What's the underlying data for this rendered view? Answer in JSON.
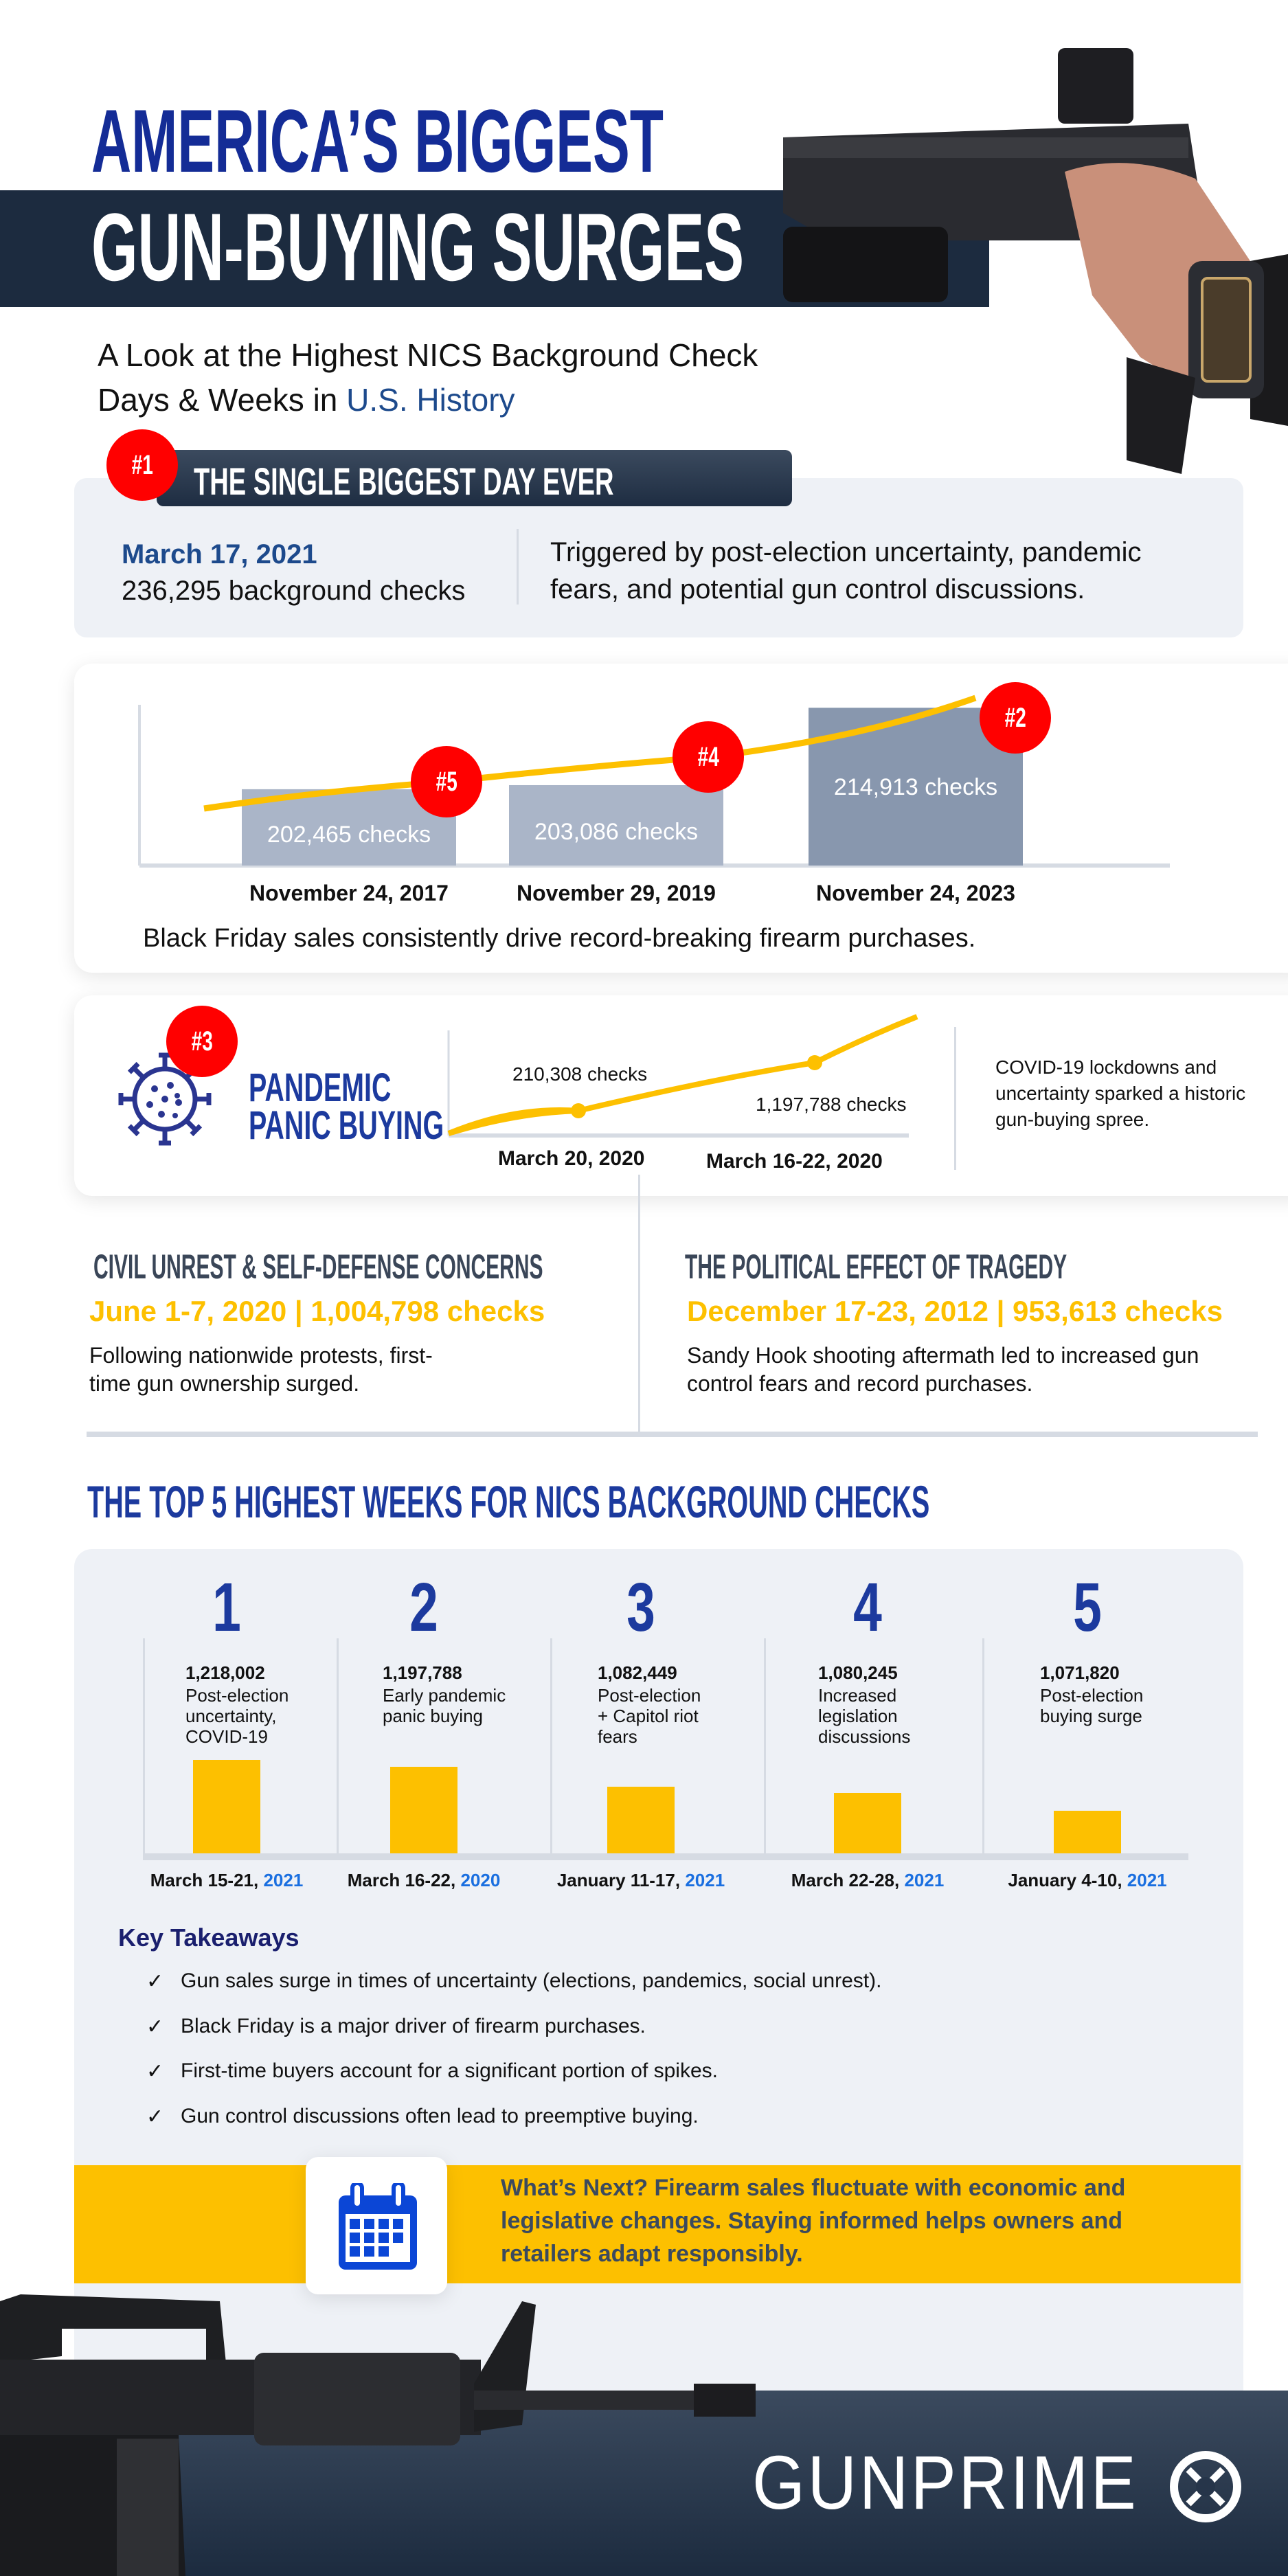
{
  "header": {
    "title_line1": "AMERICA’S BIGGEST",
    "title_line2": "GUN-BUYING SURGES",
    "subtitle_line1": "A Look at the Highest NICS Background Check",
    "subtitle_line2_prefix": "Days & Weeks in ",
    "subtitle_line2_highlight": "U.S. History"
  },
  "biggest_day": {
    "badge": "#1",
    "heading": "THE SINGLE BIGGEST DAY EVER",
    "date": "March 17, 2021",
    "checks": "236,295 background checks",
    "description_line1": "Triggered by post-election uncertainty, pandemic",
    "description_line2": "fears, and potential gun control discussions."
  },
  "black_friday": {
    "chart_data": {
      "type": "bar",
      "categories": [
        "November 24, 2017",
        "November 29, 2019",
        "November 24, 2023"
      ],
      "values": [
        202465,
        203086,
        214913
      ],
      "value_labels": [
        "202,465  checks",
        "203,086 checks",
        "214,913 checks"
      ],
      "ranks": [
        "#5",
        "#4",
        "#2"
      ],
      "title": "",
      "xlabel": "",
      "ylabel": ""
    },
    "caption": "Black Friday sales consistently drive record-breaking firearm purchases."
  },
  "pandemic": {
    "badge": "#3",
    "icon": "virus-icon",
    "title_line1": "PANDEMIC",
    "title_line2": "PANIC BUYING",
    "chart_data": {
      "type": "line",
      "points": [
        {
          "x": "March 20, 2020",
          "label": "210,308 checks",
          "value": 210308
        },
        {
          "x": "March 16-22, 2020",
          "label": "1,197,788 checks",
          "value": 1197788
        }
      ]
    },
    "description_line1": "COVID-19 lockdowns and",
    "description_line2": "uncertainty sparked a historic",
    "description_line3": "gun-buying spree."
  },
  "civil_unrest": {
    "heading": "CIVIL UNREST & SELF-DEFENSE CONCERNS",
    "stat": "June 1-7, 2020 | 1,004,798 checks",
    "body_line1": "Following nationwide protests, first-",
    "body_line2": "time gun ownership surged."
  },
  "tragedy": {
    "heading": "THE POLITICAL EFFECT OF TRAGEDY",
    "stat": "December 17-23, 2012 | 953,613 checks",
    "body_line1": "Sandy Hook shooting aftermath led to increased gun",
    "body_line2": "control fears and record purchases."
  },
  "top5": {
    "heading": "THE TOP 5 HIGHEST WEEKS FOR NICS BACKGROUND CHECKS",
    "chart_data": {
      "type": "bar",
      "ranks": [
        "1",
        "2",
        "3",
        "4",
        "5"
      ],
      "values": [
        1218002,
        1197788,
        1082449,
        1080245,
        1071820
      ],
      "value_labels": [
        "1,218,002",
        "1,197,788",
        "1,082,449",
        "1,080,245",
        "1,071,820"
      ],
      "descriptions": [
        [
          "Post-election",
          "uncertainty,",
          "COVID-19"
        ],
        [
          "Early pandemic",
          "panic buying"
        ],
        [
          "Post-election",
          "+ Capitol riot",
          "fears"
        ],
        [
          "Increased",
          "legislation",
          "discussions"
        ],
        [
          "Post-election",
          "buying surge"
        ]
      ],
      "date_labels": [
        "March 15-21, ",
        "March 16-22, ",
        "January 11-17, ",
        "March 22-28, ",
        "January 4-10, "
      ],
      "years": [
        "2021",
        "2020",
        "2021",
        "2021",
        "2021"
      ]
    }
  },
  "takeaways": {
    "heading": "Key Takeaways",
    "check_glyph": "✓",
    "items": [
      "Gun sales surge in times of uncertainty (elections, pandemics, social unrest).",
      "Black Friday is a major driver of firearm purchases.",
      "First-time buyers account for a significant portion of spikes.",
      "Gun control discussions often lead to preemptive buying."
    ]
  },
  "whats_next": {
    "icon": "calendar-icon",
    "line1": "What’s Next? Firearm sales fluctuate with economic and",
    "line2": "legislative changes. Staying informed helps owners and",
    "line3": "retailers adapt responsibly."
  },
  "footer": {
    "logo_text": "GUNPRIME"
  },
  "colors": {
    "navy": "#1c2b8a",
    "dark_band": "#1c2b3f",
    "yellow": "#fdc000",
    "red": "#ff0000",
    "year_blue": "#1a6fe0",
    "card_gray": "#eef1f6"
  }
}
